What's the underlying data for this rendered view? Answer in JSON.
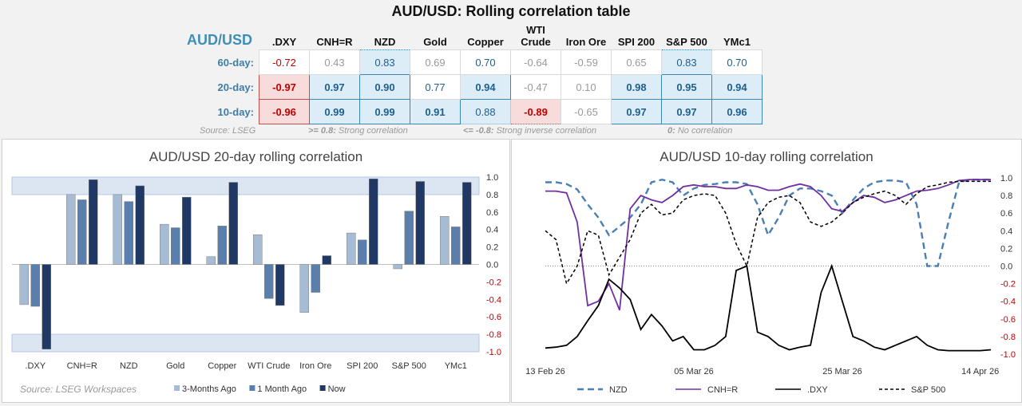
{
  "title": "AUD/USD: Rolling correlation table",
  "table": {
    "pair": "AUD/USD",
    "columns": [
      ".DXY",
      "CNH=R",
      "NZD",
      "Gold",
      "Copper",
      "WTI Crude",
      "Iron Ore",
      "SPI 200",
      "S&P 500",
      "YMc1"
    ],
    "rows": [
      {
        "label": "60-day:",
        "values": [
          "-0.72",
          "0.43",
          "0.83",
          "0.69",
          "0.70",
          "-0.64",
          "-0.59",
          "0.65",
          "0.83",
          "0.70"
        ]
      },
      {
        "label": "20-day:",
        "values": [
          "-0.97",
          "0.97",
          "0.90",
          "0.77",
          "0.94",
          "-0.47",
          "0.10",
          "0.98",
          "0.95",
          "0.94"
        ]
      },
      {
        "label": "10-day:",
        "values": [
          "-0.96",
          "0.99",
          "0.99",
          "0.91",
          "0.88",
          "-0.89",
          "-0.65",
          "0.97",
          "0.97",
          "0.96"
        ]
      }
    ],
    "footer": {
      "source": "Source: LSEG",
      "strong_key": ">= 0.8:",
      "strong_text": "Strong correlation",
      "inverse_key": "<= -0.8:",
      "inverse_text": "Strong inverse correlation",
      "none_key": "0:",
      "none_text": "No correlation"
    }
  },
  "chart_data": [
    {
      "type": "bar",
      "title": "AUD/USD 20-day rolling correlation",
      "source": "Source: LSEG Workspaces",
      "categories": [
        ".DXY",
        "CNH=R",
        "NZD",
        "Gold",
        "Copper",
        "WTI Crude",
        "Iron Ore",
        "SPI 200",
        "S&P 500",
        "YMc1"
      ],
      "series": [
        {
          "name": "3-Months Ago",
          "color": "#a6bcd5",
          "values": [
            -0.46,
            0.8,
            0.8,
            0.46,
            0.09,
            0.34,
            -0.55,
            0.36,
            -0.05,
            0.55
          ]
        },
        {
          "name": "1 Month Ago",
          "color": "#5b7fad",
          "values": [
            -0.48,
            0.74,
            0.72,
            0.42,
            0.44,
            -0.39,
            -0.32,
            0.28,
            0.61,
            0.43
          ]
        },
        {
          "name": "Now",
          "color": "#1f3864",
          "values": [
            -0.97,
            0.97,
            0.9,
            0.77,
            0.94,
            -0.47,
            0.1,
            0.98,
            0.95,
            0.94
          ]
        }
      ],
      "ylim": [
        -1.0,
        1.0
      ],
      "yticks": [
        "1.0",
        "0.8",
        "0.6",
        "0.4",
        "0.2",
        "0.0",
        "-0.2",
        "-0.4",
        "-0.6",
        "-0.8",
        "-1.0"
      ],
      "bands": [
        [
          0.8,
          1.0
        ],
        [
          -1.0,
          -0.8
        ]
      ]
    },
    {
      "type": "line",
      "title": "AUD/USD 10-day rolling correlation",
      "x_labels": [
        "13 Feb 26",
        "05 Mar 26",
        "25 Mar 26",
        "14 Apr 26"
      ],
      "x_label_index": [
        0,
        14,
        28,
        41
      ],
      "ylim": [
        -1.0,
        1.0
      ],
      "yticks": [
        "1.0",
        "0.8",
        "0.6",
        "0.4",
        "0.2",
        "0.0",
        "-0.2",
        "-0.4",
        "-0.6",
        "-0.8",
        "-1.0"
      ],
      "series": [
        {
          "name": "NZD",
          "color": "#4a7fb5",
          "dash": "dash",
          "values": [
            0.95,
            0.95,
            0.93,
            0.87,
            0.7,
            0.55,
            0.35,
            0.45,
            0.55,
            0.7,
            0.95,
            0.98,
            0.95,
            0.8,
            0.88,
            0.92,
            0.93,
            0.95,
            0.95,
            0.93,
            0.7,
            0.35,
            0.55,
            0.8,
            0.88,
            0.88,
            0.85,
            0.8,
            0.6,
            0.75,
            0.88,
            0.95,
            0.97,
            0.97,
            0.95,
            0.7,
            0.0,
            0.0,
            0.5,
            0.95,
            0.98,
            0.98,
            0.98
          ]
        },
        {
          "name": "CNH=R",
          "color": "#7030a0",
          "dash": "solid",
          "values": [
            0.85,
            0.85,
            0.83,
            0.5,
            -0.45,
            -0.4,
            -0.2,
            -0.5,
            0.65,
            0.8,
            0.75,
            0.72,
            0.8,
            0.9,
            0.92,
            0.9,
            0.9,
            0.88,
            0.88,
            0.92,
            0.9,
            0.86,
            0.86,
            0.9,
            0.93,
            0.9,
            0.8,
            0.65,
            0.62,
            0.72,
            0.8,
            0.78,
            0.72,
            0.75,
            0.8,
            0.85,
            0.86,
            0.88,
            0.92,
            0.97,
            0.98,
            0.98,
            0.98
          ]
        },
        {
          "name": ".DXY",
          "color": "#000000",
          "dash": "solid",
          "values": [
            -0.93,
            -0.92,
            -0.9,
            -0.8,
            -0.62,
            -0.45,
            -0.15,
            -0.25,
            -0.38,
            -0.72,
            -0.55,
            -0.68,
            -0.85,
            -0.8,
            -0.95,
            -0.95,
            -0.9,
            -0.8,
            -0.05,
            0.0,
            -0.75,
            -0.8,
            -0.9,
            -0.95,
            -0.92,
            -0.9,
            -0.3,
            0.0,
            -0.4,
            -0.8,
            -0.85,
            -0.92,
            -0.95,
            -0.9,
            -0.85,
            -0.8,
            -0.9,
            -0.95,
            -0.96,
            -0.96,
            -0.96,
            -0.96,
            -0.95
          ]
        },
        {
          "name": "S&P 500",
          "color": "#000000",
          "dash": "dash",
          "values": [
            0.4,
            0.3,
            -0.2,
            0.0,
            0.4,
            0.35,
            -0.1,
            0.1,
            0.3,
            0.6,
            0.7,
            0.58,
            0.6,
            0.75,
            0.8,
            0.82,
            0.8,
            0.6,
            0.25,
            0.0,
            0.55,
            0.72,
            0.78,
            0.8,
            0.72,
            0.5,
            0.45,
            0.5,
            0.6,
            0.72,
            0.78,
            0.82,
            0.85,
            0.8,
            0.7,
            0.82,
            0.9,
            0.92,
            0.95,
            0.96,
            0.96,
            0.96,
            0.96
          ]
        }
      ]
    }
  ],
  "colors": {
    "accent": "#3d8fb8",
    "blue_fill": "#dcedf7",
    "red_fill": "#f8dcdc",
    "red_text": "#c00000"
  }
}
